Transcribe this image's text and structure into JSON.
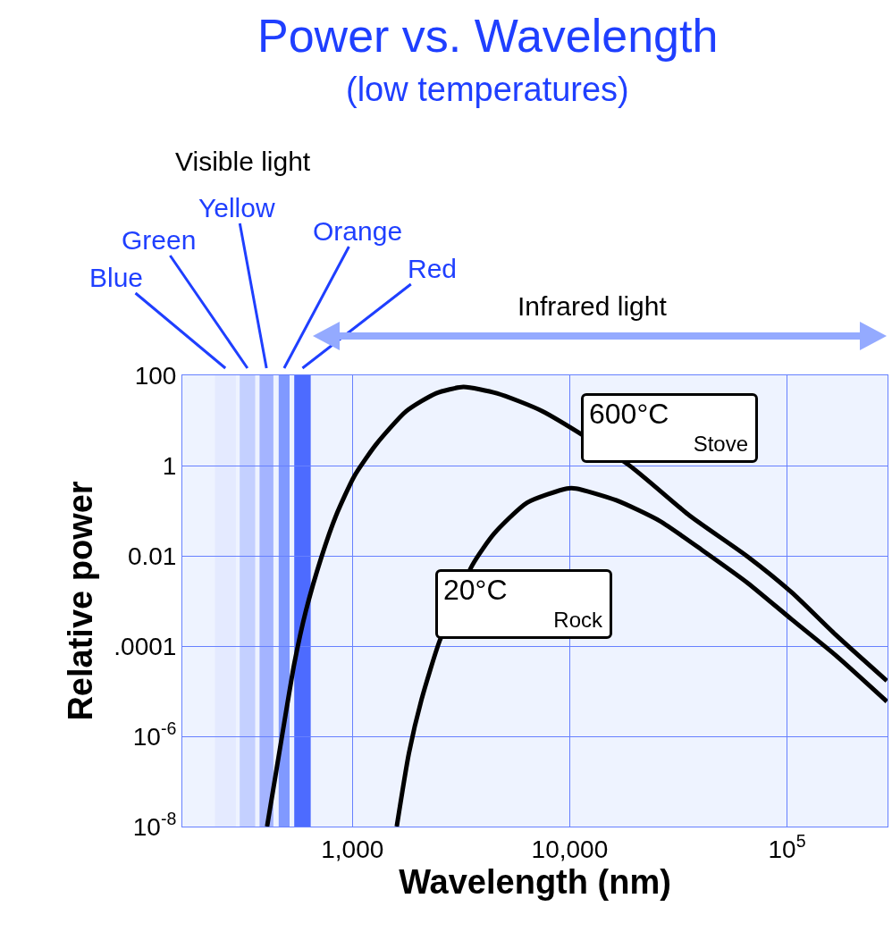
{
  "chart_data": {
    "type": "line",
    "title": "Power vs. Wavelength",
    "subtitle": "(low temperatures)",
    "xlabel": "Wavelength (nm)",
    "ylabel": "Relative power",
    "log": "xy",
    "grid": true,
    "legend": false,
    "marker": "none",
    "line_style": "solid",
    "xlim": [
      165,
      290000
    ],
    "xticks": [
      {
        "value": 1000,
        "label": "1,000"
      },
      {
        "value": 10000,
        "label": "10,000"
      },
      {
        "value": 100000,
        "label": "10$^{5}$"
      }
    ],
    "ylim": [
      1e-08,
      100
    ],
    "yticks": [
      100,
      1,
      0.01,
      {
        "value": 0.0001,
        "label": ".0001"
      },
      {
        "value": 1e-06,
        "label": "10$^{-6}$"
      },
      {
        "value": 1e-08,
        "label": "10$^{-8}$"
      }
    ],
    "series": [
      {
        "name": "600°C",
        "color": "#000000",
        "x": [
          405,
          472,
          540,
          612,
          721,
          841,
          1020,
          1290,
          1770,
          2430,
          3240,
          4620,
          7490,
          18600,
          35600,
          65900,
          105000,
          167000,
          288000
        ],
        "values": [
          1e-08,
          8.7e-07,
          4e-05,
          0.00062,
          0.0095,
          0.078,
          0.58,
          3,
          16,
          40,
          55,
          40,
          16,
          1.05,
          0.078,
          0.0096,
          0.00155,
          0.00018,
          1.7e-05
        ]
      },
      {
        "name": "20°C",
        "color": "#000000",
        "x": [
          1600,
          1820,
          2080,
          2520,
          3570,
          4490,
          6360,
          9710,
          10700,
          16400,
          26000,
          41400,
          65900,
          105000,
          167000,
          288000
        ],
        "values": [
          1e-08,
          4.2e-07,
          6.5e-06,
          0.00013,
          0.0063,
          0.031,
          0.15,
          0.31,
          0.31,
          0.17,
          0.059,
          0.0126,
          0.0025,
          0.00039,
          6.3e-05,
          5.9e-06
        ]
      }
    ],
    "bands": [
      {
        "axis": "x",
        "from": 233,
        "to": 291,
        "color": "#e4eaff"
      },
      {
        "axis": "x",
        "from": 303,
        "to": 357,
        "color": "#c4d0ff"
      },
      {
        "axis": "x",
        "from": 374,
        "to": 433,
        "color": "#a4b4ff"
      },
      {
        "axis": "x",
        "from": 458,
        "to": 514,
        "color": "#8099ff"
      },
      {
        "axis": "x",
        "from": 540,
        "to": 643,
        "color": "#4d6bff"
      }
    ],
    "annotations": [
      "Visible light",
      "Infrared light",
      "Blue",
      "Green",
      "Yellow",
      "Orange",
      "Red",
      "Stove",
      "Rock"
    ]
  }
}
